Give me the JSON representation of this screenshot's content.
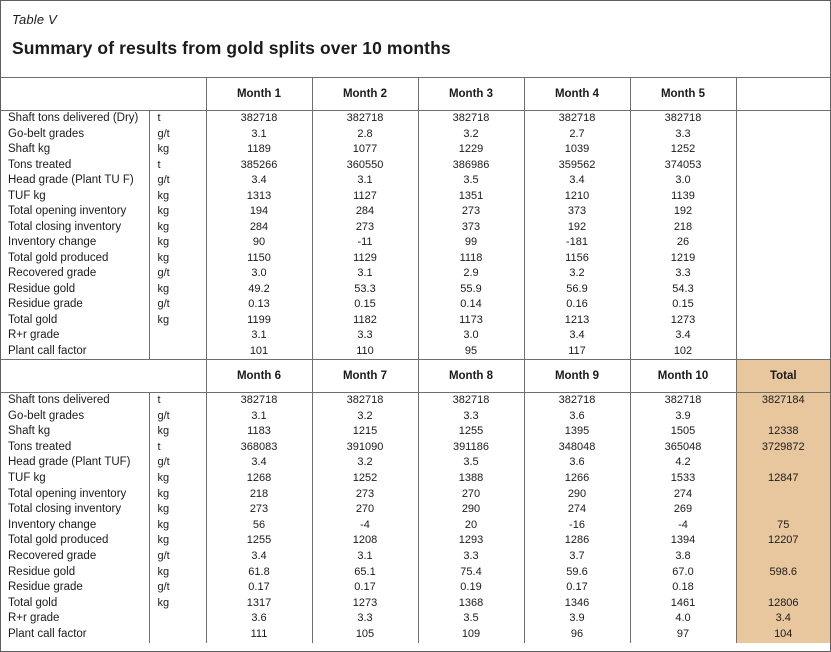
{
  "title": {
    "table_label": "Table V",
    "heading": "Summary of results from gold splits over 10 months"
  },
  "colors": {
    "total_column_bg": "#e9c79e",
    "border": "#6f6f6f",
    "text": "#1b1b1b"
  },
  "sections": [
    {
      "columns": [
        "Month 1",
        "Month 2",
        "Month 3",
        "Month 4",
        "Month 5"
      ],
      "total_header": "",
      "has_total": false,
      "rows": [
        {
          "label": "Shaft tons delivered (Dry)",
          "unit": "t",
          "values": [
            "382718",
            "382718",
            "382718",
            "382718",
            "382718"
          ],
          "total": ""
        },
        {
          "label": "Go-belt grades",
          "unit": "g/t",
          "values": [
            "3.1",
            "2.8",
            "3.2",
            "2.7",
            "3.3"
          ],
          "total": ""
        },
        {
          "label": "Shaft kg",
          "unit": "kg",
          "values": [
            "1189",
            "1077",
            "1229",
            "1039",
            "1252"
          ],
          "total": ""
        },
        {
          "label": "Tons treated",
          "unit": "t",
          "values": [
            "385266",
            "360550",
            "386986",
            "359562",
            "374053"
          ],
          "total": ""
        },
        {
          "label": "Head grade (Plant TU F)",
          "unit": "g/t",
          "values": [
            "3.4",
            "3.1",
            "3.5",
            "3.4",
            "3.0"
          ],
          "total": ""
        },
        {
          "label": "TUF kg",
          "unit": "kg",
          "values": [
            "1313",
            "1127",
            "1351",
            "1210",
            "1139"
          ],
          "total": ""
        },
        {
          "label": "Total opening inventory",
          "unit": "kg",
          "values": [
            "194",
            "284",
            "273",
            "373",
            "192"
          ],
          "total": ""
        },
        {
          "label": "Total closing inventory",
          "unit": "kg",
          "values": [
            "284",
            "273",
            "373",
            "192",
            "218"
          ],
          "total": ""
        },
        {
          "label": "Inventory change",
          "unit": "kg",
          "values": [
            "90",
            "-11",
            "99",
            "-181",
            "26"
          ],
          "total": ""
        },
        {
          "label": "Total gold produced",
          "unit": "kg",
          "values": [
            "1150",
            "1129",
            "1118",
            "1156",
            "1219"
          ],
          "total": ""
        },
        {
          "label": "Recovered grade",
          "unit": "g/t",
          "values": [
            "3.0",
            "3.1",
            "2.9",
            "3.2",
            "3.3"
          ],
          "total": ""
        },
        {
          "label": "Residue gold",
          "unit": "kg",
          "values": [
            "49.2",
            "53.3",
            "55.9",
            "56.9",
            "54.3"
          ],
          "total": ""
        },
        {
          "label": "Residue grade",
          "unit": "g/t",
          "values": [
            "0.13",
            "0.15",
            "0.14",
            "0.16",
            "0.15"
          ],
          "total": ""
        },
        {
          "label": "Total gold",
          "unit": "kg",
          "values": [
            "1199",
            "1182",
            "1173",
            "1213",
            "1273"
          ],
          "total": ""
        },
        {
          "label": "R+r grade",
          "unit": "",
          "values": [
            "3.1",
            "3.3",
            "3.0",
            "3.4",
            "3.4"
          ],
          "total": ""
        },
        {
          "label": "Plant call factor",
          "unit": "",
          "values": [
            "101",
            "110",
            "95",
            "117",
            "102"
          ],
          "total": ""
        }
      ]
    },
    {
      "columns": [
        "Month 6",
        "Month 7",
        "Month 8",
        "Month 9",
        "Month 10"
      ],
      "total_header": "Total",
      "has_total": true,
      "rows": [
        {
          "label": "Shaft tons delivered",
          "unit": "t",
          "values": [
            "382718",
            "382718",
            "382718",
            "382718",
            "382718"
          ],
          "total": "3827184"
        },
        {
          "label": "Go-belt grades",
          "unit": "g/t",
          "values": [
            "3.1",
            "3.2",
            "3.3",
            "3.6",
            "3.9"
          ],
          "total": ""
        },
        {
          "label": "Shaft kg",
          "unit": "kg",
          "values": [
            "1183",
            "1215",
            "1255",
            "1395",
            "1505"
          ],
          "total": "12338"
        },
        {
          "label": "Tons treated",
          "unit": "t",
          "values": [
            "368083",
            "391090",
            "391186",
            "348048",
            "365048"
          ],
          "total": "3729872"
        },
        {
          "label": "Head grade (Plant TUF)",
          "unit": "g/t",
          "values": [
            "3.4",
            "3.2",
            "3.5",
            "3.6",
            "4.2"
          ],
          "total": ""
        },
        {
          "label": "TUF kg",
          "unit": "kg",
          "values": [
            "1268",
            "1252",
            "1388",
            "1266",
            "1533"
          ],
          "total": "12847"
        },
        {
          "label": "Total opening inventory",
          "unit": "kg",
          "values": [
            "218",
            "273",
            "270",
            "290",
            "274"
          ],
          "total": ""
        },
        {
          "label": "Total closing inventory",
          "unit": "kg",
          "values": [
            "273",
            "270",
            "290",
            "274",
            "269"
          ],
          "total": ""
        },
        {
          "label": "Inventory change",
          "unit": "kg",
          "values": [
            "56",
            "-4",
            "20",
            "-16",
            "-4"
          ],
          "total": "75"
        },
        {
          "label": "Total gold produced",
          "unit": "kg",
          "values": [
            "1255",
            "1208",
            "1293",
            "1286",
            "1394"
          ],
          "total": "12207"
        },
        {
          "label": "Recovered grade",
          "unit": "g/t",
          "values": [
            "3.4",
            "3.1",
            "3.3",
            "3.7",
            "3.8"
          ],
          "total": ""
        },
        {
          "label": "Residue gold",
          "unit": "kg",
          "values": [
            "61.8",
            "65.1",
            "75.4",
            "59.6",
            "67.0"
          ],
          "total": "598.6"
        },
        {
          "label": "Residue grade",
          "unit": "g/t",
          "values": [
            "0.17",
            "0.17",
            "0.19",
            "0.17",
            "0.18"
          ],
          "total": ""
        },
        {
          "label": "Total gold",
          "unit": "kg",
          "values": [
            "1317",
            "1273",
            "1368",
            "1346",
            "1461"
          ],
          "total": "12806"
        },
        {
          "label": "R+r grade",
          "unit": "",
          "values": [
            "3.6",
            "3.3",
            "3.5",
            "3.9",
            "4.0"
          ],
          "total": "3.4"
        },
        {
          "label": "Plant call factor",
          "unit": "",
          "values": [
            "111",
            "105",
            "109",
            "96",
            "97"
          ],
          "total": "104"
        }
      ]
    }
  ]
}
